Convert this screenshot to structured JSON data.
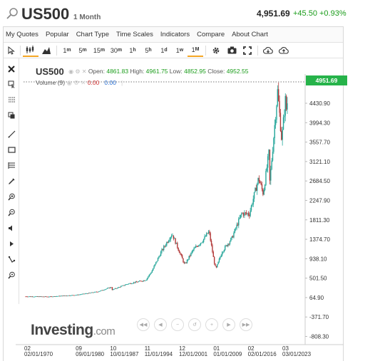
{
  "header": {
    "symbol": "US500",
    "interval": "1 Month",
    "price": "4,951.69",
    "change": "+45.50 +0.93%"
  },
  "menu": [
    "My Quotes",
    "Popular",
    "Chart Type",
    "Time Scales",
    "Indicators",
    "Compare",
    "About Chart"
  ],
  "toolbar": {
    "timeframes": [
      {
        "base": "1",
        "sup": "m"
      },
      {
        "base": "5",
        "sup": "m"
      },
      {
        "base": "15",
        "sup": "m"
      },
      {
        "base": "30",
        "sup": "m"
      },
      {
        "base": "1",
        "sup": "h"
      },
      {
        "base": "5",
        "sup": "h"
      },
      {
        "base": "1",
        "sup": "d"
      },
      {
        "base": "1",
        "sup": "w"
      },
      {
        "base": "1",
        "sup": "M"
      }
    ],
    "active_timeframe": "1M"
  },
  "legend": {
    "symbol": "US500",
    "open_label": "Open:",
    "open": "4861.83",
    "high_label": "High:",
    "high": "4961.75",
    "low_label": "Low:",
    "low": "4852.95",
    "close_label": "Close:",
    "close": "4952.55",
    "volume_label": "Volume (9)",
    "volume_a": "0.00",
    "volume_b": "0.00"
  },
  "price_tag": "4951.69",
  "logo": {
    "main": "Investing",
    "suffix": ".com"
  },
  "colors": {
    "up": "#26a69a",
    "down": "#b33a3a",
    "tag": "#26b34a",
    "accent": "#f5a623"
  },
  "chart_data": {
    "type": "candlestick",
    "y_ticks": [
      "4430.90",
      "3994.30",
      "3557.70",
      "3121.10",
      "2684.50",
      "2247.90",
      "1811.30",
      "1374.70",
      "938.10",
      "501.50",
      "64.90",
      "-371.70",
      "-808.30"
    ],
    "x_ticks": [
      {
        "top": "02",
        "bottom": "02/01/1970"
      },
      {
        "top": "09",
        "bottom": "09/01/1980"
      },
      {
        "top": "10",
        "bottom": "10/01/1987"
      },
      {
        "top": "11",
        "bottom": "11/01/1994"
      },
      {
        "top": "12",
        "bottom": "12/01/2001"
      },
      {
        "top": "01",
        "bottom": "01/01/2009"
      },
      {
        "top": "02",
        "bottom": "02/01/2016"
      },
      {
        "top": "03",
        "bottom": "03/01/2023"
      }
    ],
    "last": 4951.69,
    "series": [
      {
        "year": 1970.1,
        "value": 90
      },
      {
        "year": 1975,
        "value": 85
      },
      {
        "year": 1980.7,
        "value": 125
      },
      {
        "year": 1985,
        "value": 200
      },
      {
        "year": 1987.7,
        "value": 300
      },
      {
        "year": 1987.9,
        "value": 240
      },
      {
        "year": 1991,
        "value": 370
      },
      {
        "year": 1994.8,
        "value": 460
      },
      {
        "year": 1996,
        "value": 650
      },
      {
        "year": 1998,
        "value": 1100
      },
      {
        "year": 2000.2,
        "value": 1500
      },
      {
        "year": 2001.5,
        "value": 1150
      },
      {
        "year": 2002.8,
        "value": 800
      },
      {
        "year": 2004.5,
        "value": 1130
      },
      {
        "year": 2006.5,
        "value": 1350
      },
      {
        "year": 2007.8,
        "value": 1550
      },
      {
        "year": 2008.8,
        "value": 900
      },
      {
        "year": 2009.2,
        "value": 700
      },
      {
        "year": 2010.5,
        "value": 1100
      },
      {
        "year": 2012.5,
        "value": 1400
      },
      {
        "year": 2014.5,
        "value": 1950
      },
      {
        "year": 2016.1,
        "value": 1950
      },
      {
        "year": 2018,
        "value": 2750
      },
      {
        "year": 2018.95,
        "value": 2400
      },
      {
        "year": 2020.1,
        "value": 3300
      },
      {
        "year": 2020.25,
        "value": 2600
      },
      {
        "year": 2021.9,
        "value": 4700
      },
      {
        "year": 2022.75,
        "value": 3600
      },
      {
        "year": 2023.5,
        "value": 4500
      },
      {
        "year": 2023.8,
        "value": 4200
      },
      {
        "year": 2024.1,
        "value": 4951.69
      }
    ]
  }
}
